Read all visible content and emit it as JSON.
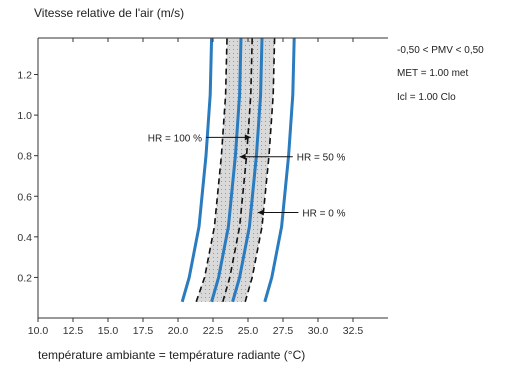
{
  "chart_data": {
    "type": "line",
    "ylabel": "Vitesse relative de l'air (m/s)",
    "xlabel": "température ambiante = température radiante (°C)",
    "xlim": [
      10.0,
      35.0
    ],
    "ylim": [
      0.0,
      1.38
    ],
    "x_ticks": [
      10.0,
      12.5,
      15.0,
      17.5,
      20.0,
      22.5,
      25.0,
      27.5,
      30.0,
      32.5
    ],
    "x_tick_labels": [
      "10.0",
      "12.5",
      "15.0",
      "17.5",
      "20.0",
      "22.5",
      "25.0",
      "27.5",
      "30.0",
      "32.5"
    ],
    "y_ticks": [
      0.2,
      0.4,
      0.6,
      0.8,
      1.0,
      1.2
    ],
    "y_tick_labels": [
      "0.2",
      "0.4",
      "0.6",
      "0.8",
      "1.0",
      "1.2"
    ],
    "grid": false,
    "conditions": [
      "-0,50 < PMV < 0,50",
      "MET = 1.00 met",
      "Icl = 1.00 Clo"
    ],
    "series": [
      {
        "style": "solid",
        "color": "#2b7bbf",
        "x": [
          20.3,
          20.8,
          21.5,
          22.0,
          22.3,
          22.4
        ],
        "y": [
          0.08,
          0.2,
          0.45,
          0.8,
          1.1,
          1.38
        ]
      },
      {
        "style": "dashed",
        "color": "#111111",
        "x": [
          21.3,
          21.9,
          22.6,
          23.1,
          23.4,
          23.5
        ],
        "y": [
          0.08,
          0.2,
          0.45,
          0.8,
          1.1,
          1.38
        ]
      },
      {
        "style": "solid",
        "color": "#2b7bbf",
        "x": [
          22.4,
          22.9,
          23.6,
          24.1,
          24.4,
          24.5
        ],
        "y": [
          0.08,
          0.2,
          0.45,
          0.8,
          1.1,
          1.38
        ]
      },
      {
        "style": "dashed",
        "color": "#111111",
        "x": [
          23.2,
          23.7,
          24.4,
          24.9,
          25.2,
          25.3
        ],
        "y": [
          0.08,
          0.2,
          0.45,
          0.8,
          1.1,
          1.38
        ]
      },
      {
        "style": "solid",
        "color": "#2b7bbf",
        "x": [
          23.9,
          24.4,
          25.1,
          25.6,
          25.9,
          26.0
        ],
        "y": [
          0.08,
          0.2,
          0.45,
          0.8,
          1.1,
          1.38
        ]
      },
      {
        "style": "dashed",
        "color": "#111111",
        "x": [
          24.8,
          25.3,
          26.0,
          26.5,
          26.8,
          26.9
        ],
        "y": [
          0.08,
          0.2,
          0.45,
          0.8,
          1.1,
          1.38
        ]
      },
      {
        "style": "solid",
        "color": "#2b7bbf",
        "x": [
          26.2,
          26.7,
          27.4,
          27.9,
          28.2,
          28.3
        ],
        "y": [
          0.08,
          0.2,
          0.45,
          0.8,
          1.1,
          1.38
        ]
      }
    ],
    "shaded_band": {
      "color": "#d9d9d9",
      "between_series": [
        1,
        5
      ]
    },
    "annotations": [
      {
        "text": "HR = 100 %",
        "arrow_from": [
          22.0,
          0.89
        ],
        "arrow_to": [
          25.2,
          0.89
        ]
      },
      {
        "text": "HR = 50 %",
        "arrow_from": [
          28.2,
          0.795
        ],
        "arrow_to": [
          24.4,
          0.795
        ]
      },
      {
        "text": "HR = 0 %",
        "arrow_from": [
          28.6,
          0.52
        ],
        "arrow_to": [
          25.7,
          0.52
        ]
      }
    ]
  }
}
